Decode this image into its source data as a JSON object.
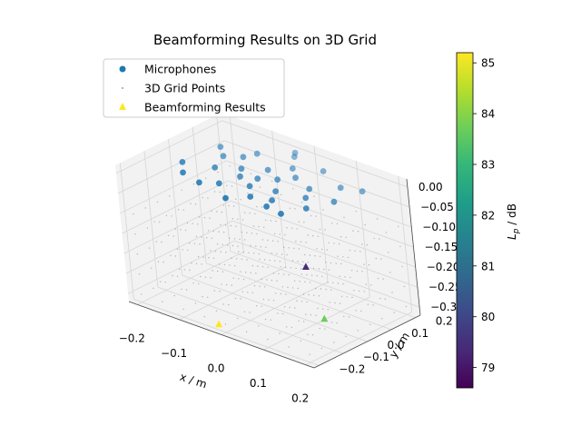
{
  "chart_data": {
    "type": "scatter3d",
    "title": "Beamforming Results on 3D Grid",
    "xlabel": "x / m",
    "ylabel": "y / m",
    "zlabel": "",
    "xlim": [
      -0.22,
      0.22
    ],
    "ylim": [
      -0.22,
      0.22
    ],
    "zlim": [
      -0.32,
      0.02
    ],
    "x_ticks": [
      "−0.2",
      "−0.1",
      "0.0",
      "0.1",
      "0.2"
    ],
    "y_ticks": [
      "−0.2",
      "−0.1",
      "0.0",
      "0.1",
      "0.2"
    ],
    "z_ticks": [
      "0.00",
      "−0.05",
      "−0.10",
      "−0.15",
      "−0.20",
      "−0.25",
      "−0.30"
    ],
    "legend": {
      "placement": "upper-left",
      "entries": [
        "Microphones",
        "3D Grid Points",
        "Beamforming Results"
      ]
    },
    "colorbar": {
      "label": "L_p / dB",
      "label_main": "L",
      "label_sub": "p",
      "label_unit": " / dB",
      "range": [
        78.6,
        85.2
      ],
      "ticks": [
        "79",
        "80",
        "81",
        "82",
        "83",
        "84",
        "85"
      ],
      "tick_values": [
        79,
        80,
        81,
        82,
        83,
        84,
        85
      ]
    },
    "microphones": [
      {
        "x": -0.16,
        "y": -0.05,
        "z": 0.0
      },
      {
        "x": -0.12,
        "y": 0.05,
        "z": 0.0
      },
      {
        "x": -0.08,
        "y": 0.12,
        "z": 0.0
      },
      {
        "x": -0.02,
        "y": 0.17,
        "z": 0.0
      },
      {
        "x": 0.06,
        "y": 0.15,
        "z": 0.0
      },
      {
        "x": 0.13,
        "y": 0.1,
        "z": 0.0
      },
      {
        "x": 0.16,
        "y": 0.02,
        "z": 0.0
      },
      {
        "x": 0.14,
        "y": -0.06,
        "z": 0.0
      },
      {
        "x": 0.08,
        "y": -0.12,
        "z": 0.0
      },
      {
        "x": 0.0,
        "y": -0.15,
        "z": 0.0
      },
      {
        "x": -0.08,
        "y": -0.12,
        "z": 0.0
      },
      {
        "x": -0.13,
        "y": -0.1,
        "z": 0.0
      },
      {
        "x": -0.04,
        "y": -0.02,
        "z": 0.0
      },
      {
        "x": 0.02,
        "y": 0.03,
        "z": 0.0
      },
      {
        "x": -0.02,
        "y": 0.06,
        "z": 0.0
      },
      {
        "x": 0.05,
        "y": -0.03,
        "z": 0.0
      },
      {
        "x": -0.06,
        "y": 0.02,
        "z": 0.0
      },
      {
        "x": 0.0,
        "y": -0.05,
        "z": 0.0
      },
      {
        "x": 0.04,
        "y": 0.07,
        "z": 0.0
      },
      {
        "x": -0.09,
        "y": 0.08,
        "z": 0.0
      },
      {
        "x": 0.09,
        "y": 0.04,
        "z": 0.0
      },
      {
        "x": 0.07,
        "y": -0.08,
        "z": 0.0
      },
      {
        "x": -0.05,
        "y": -0.09,
        "z": 0.0
      },
      {
        "x": 0.01,
        "y": 0.11,
        "z": 0.0
      },
      {
        "x": -0.1,
        "y": -0.02,
        "z": 0.0
      },
      {
        "x": 0.11,
        "y": -0.01,
        "z": 0.0
      },
      {
        "x": -0.01,
        "y": 0.0,
        "z": 0.0
      },
      {
        "x": 0.03,
        "y": -0.1,
        "z": 0.0
      },
      {
        "x": -0.15,
        "y": 0.09,
        "z": 0.0
      },
      {
        "x": 0.17,
        "y": 0.12,
        "z": 0.0
      },
      {
        "x": -0.03,
        "y": 0.19,
        "z": 0.0
      },
      {
        "x": 0.12,
        "y": -0.13,
        "z": 0.0
      }
    ],
    "grid_points": {
      "x": [
        -0.2,
        -0.15,
        -0.1,
        -0.05,
        0.0,
        0.05,
        0.1,
        0.15,
        0.2
      ],
      "y": [
        -0.2,
        -0.15,
        -0.1,
        -0.05,
        0.0,
        0.05,
        0.1,
        0.15,
        0.2
      ],
      "z": [
        -0.3,
        -0.25,
        -0.2,
        -0.15,
        -0.1
      ]
    },
    "beamforming_results": [
      {
        "x": -0.01,
        "y": -0.21,
        "z": -0.3,
        "Lp": 85.2
      },
      {
        "x": 0.12,
        "y": 0.0,
        "z": -0.3,
        "Lp": 83.7
      },
      {
        "x": -0.05,
        "y": 0.22,
        "z": -0.3,
        "Lp": 79.4
      }
    ],
    "colors": {
      "microphones": "#1f77b4",
      "grid_points": "#808080",
      "viridis": [
        "#440154",
        "#482878",
        "#3e4989",
        "#31688e",
        "#26828e",
        "#1f9e89",
        "#35b779",
        "#6ece58",
        "#b5de2b",
        "#fde725"
      ]
    }
  }
}
